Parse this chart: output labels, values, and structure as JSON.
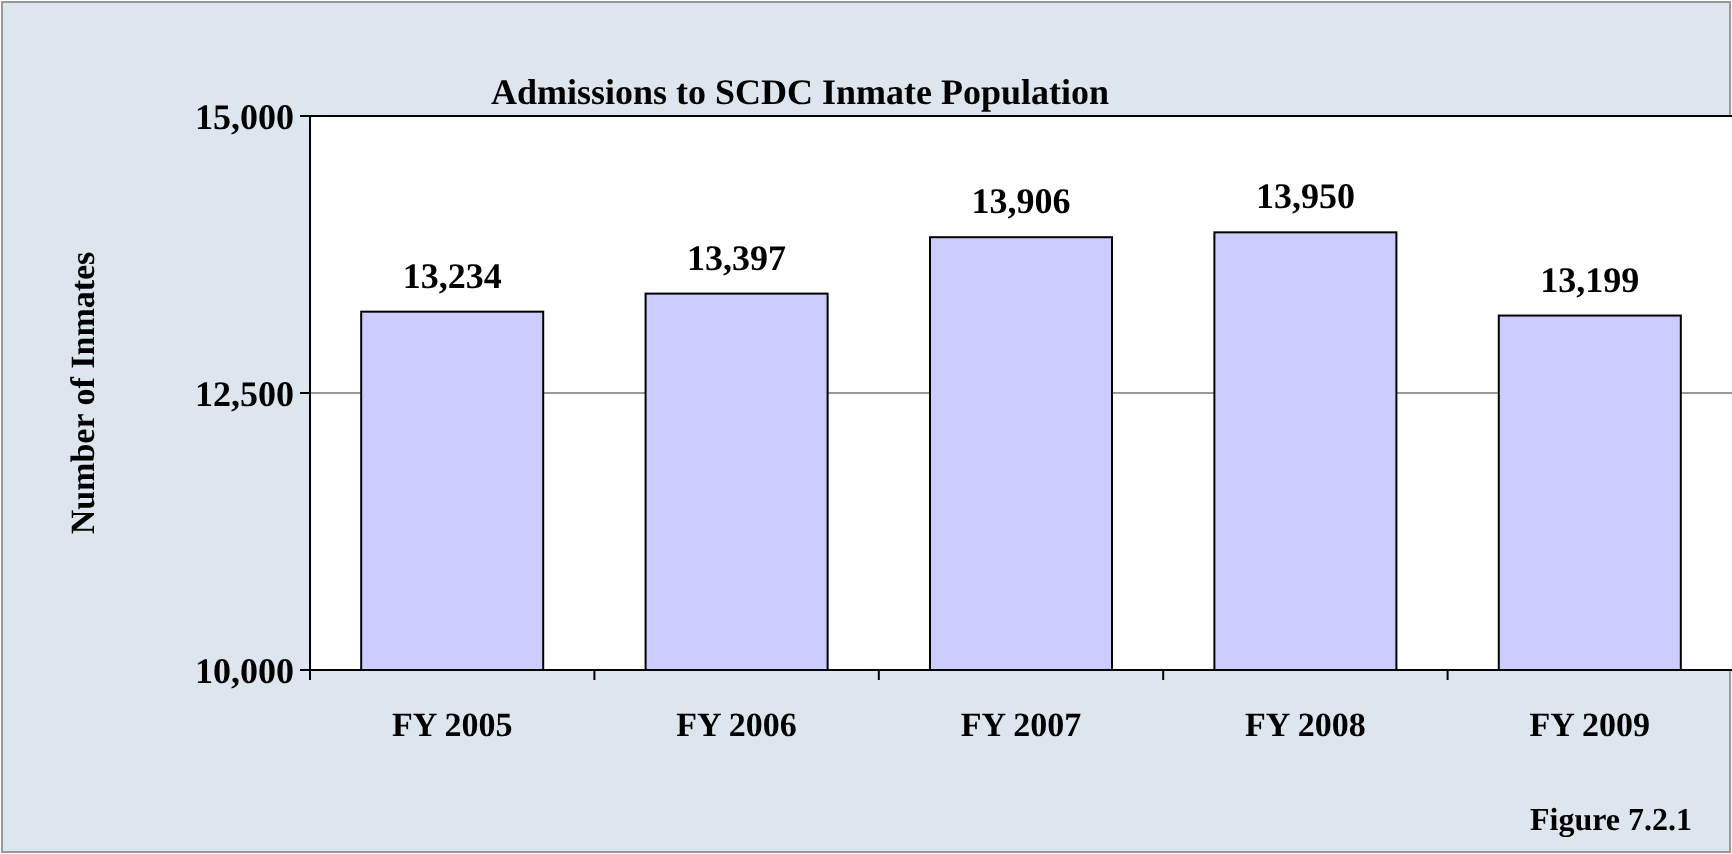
{
  "chart_data": {
    "type": "bar",
    "title": "Admissions to SCDC Inmate Population",
    "ylabel": "Number of Inmates",
    "categories": [
      "FY 2005",
      "FY 2006",
      "FY 2007",
      "FY 2008",
      "FY 2009"
    ],
    "values": [
      13234,
      13397,
      13906,
      13950,
      13199
    ],
    "value_labels": [
      "13,234",
      "13,397",
      "13,906",
      "13,950",
      "13,199"
    ],
    "color": "#ccccff",
    "ylim": [
      10000,
      15000
    ],
    "yticks": [
      {
        "value": 10000,
        "label": "10,000"
      },
      {
        "value": 12500,
        "label": "12,500"
      },
      {
        "value": 15000,
        "label": "15,000"
      }
    ],
    "grid": "y",
    "annotations": [
      "Figure 7.2.1"
    ]
  }
}
